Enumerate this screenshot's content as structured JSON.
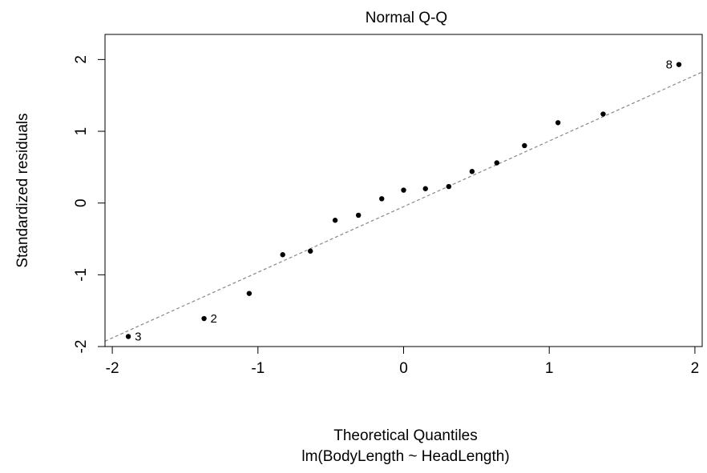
{
  "chart_data": {
    "type": "scatter",
    "title": "Normal Q-Q",
    "xlabel": "Theoretical Quantiles",
    "subtitle": "lm(BodyLength ~ HeadLength)",
    "ylabel": "Standardized residuals",
    "xlim": [
      -2.05,
      2.05
    ],
    "ylim": [
      -2.0,
      2.35
    ],
    "x_ticks": [
      -2,
      -1,
      0,
      1,
      2
    ],
    "x_tick_labels": [
      "-2",
      "-1",
      "0",
      "1",
      "2"
    ],
    "y_ticks": [
      -2,
      -1,
      0,
      1,
      2
    ],
    "y_tick_labels": [
      "-2",
      "-1",
      "0",
      "1",
      "2"
    ],
    "points": [
      {
        "x": -1.89,
        "y": -1.86,
        "label": "3"
      },
      {
        "x": -1.37,
        "y": -1.61,
        "label": "2"
      },
      {
        "x": -1.06,
        "y": -1.26,
        "label": ""
      },
      {
        "x": -0.83,
        "y": -0.72,
        "label": ""
      },
      {
        "x": -0.64,
        "y": -0.67,
        "label": ""
      },
      {
        "x": -0.47,
        "y": -0.24,
        "label": ""
      },
      {
        "x": -0.31,
        "y": -0.17,
        "label": ""
      },
      {
        "x": -0.15,
        "y": 0.06,
        "label": ""
      },
      {
        "x": 0.0,
        "y": 0.18,
        "label": ""
      },
      {
        "x": 0.15,
        "y": 0.2,
        "label": ""
      },
      {
        "x": 0.31,
        "y": 0.23,
        "label": ""
      },
      {
        "x": 0.47,
        "y": 0.44,
        "label": ""
      },
      {
        "x": 0.64,
        "y": 0.56,
        "label": ""
      },
      {
        "x": 0.83,
        "y": 0.8,
        "label": ""
      },
      {
        "x": 1.06,
        "y": 1.12,
        "label": ""
      },
      {
        "x": 1.37,
        "y": 1.24,
        "label": ""
      },
      {
        "x": 1.89,
        "y": 1.93,
        "label": "8"
      }
    ],
    "reference_line": {
      "intercept": -0.05,
      "slope": 0.915,
      "style": "dashed",
      "color": "#888888"
    },
    "grid": false,
    "point_color": "#000000"
  }
}
